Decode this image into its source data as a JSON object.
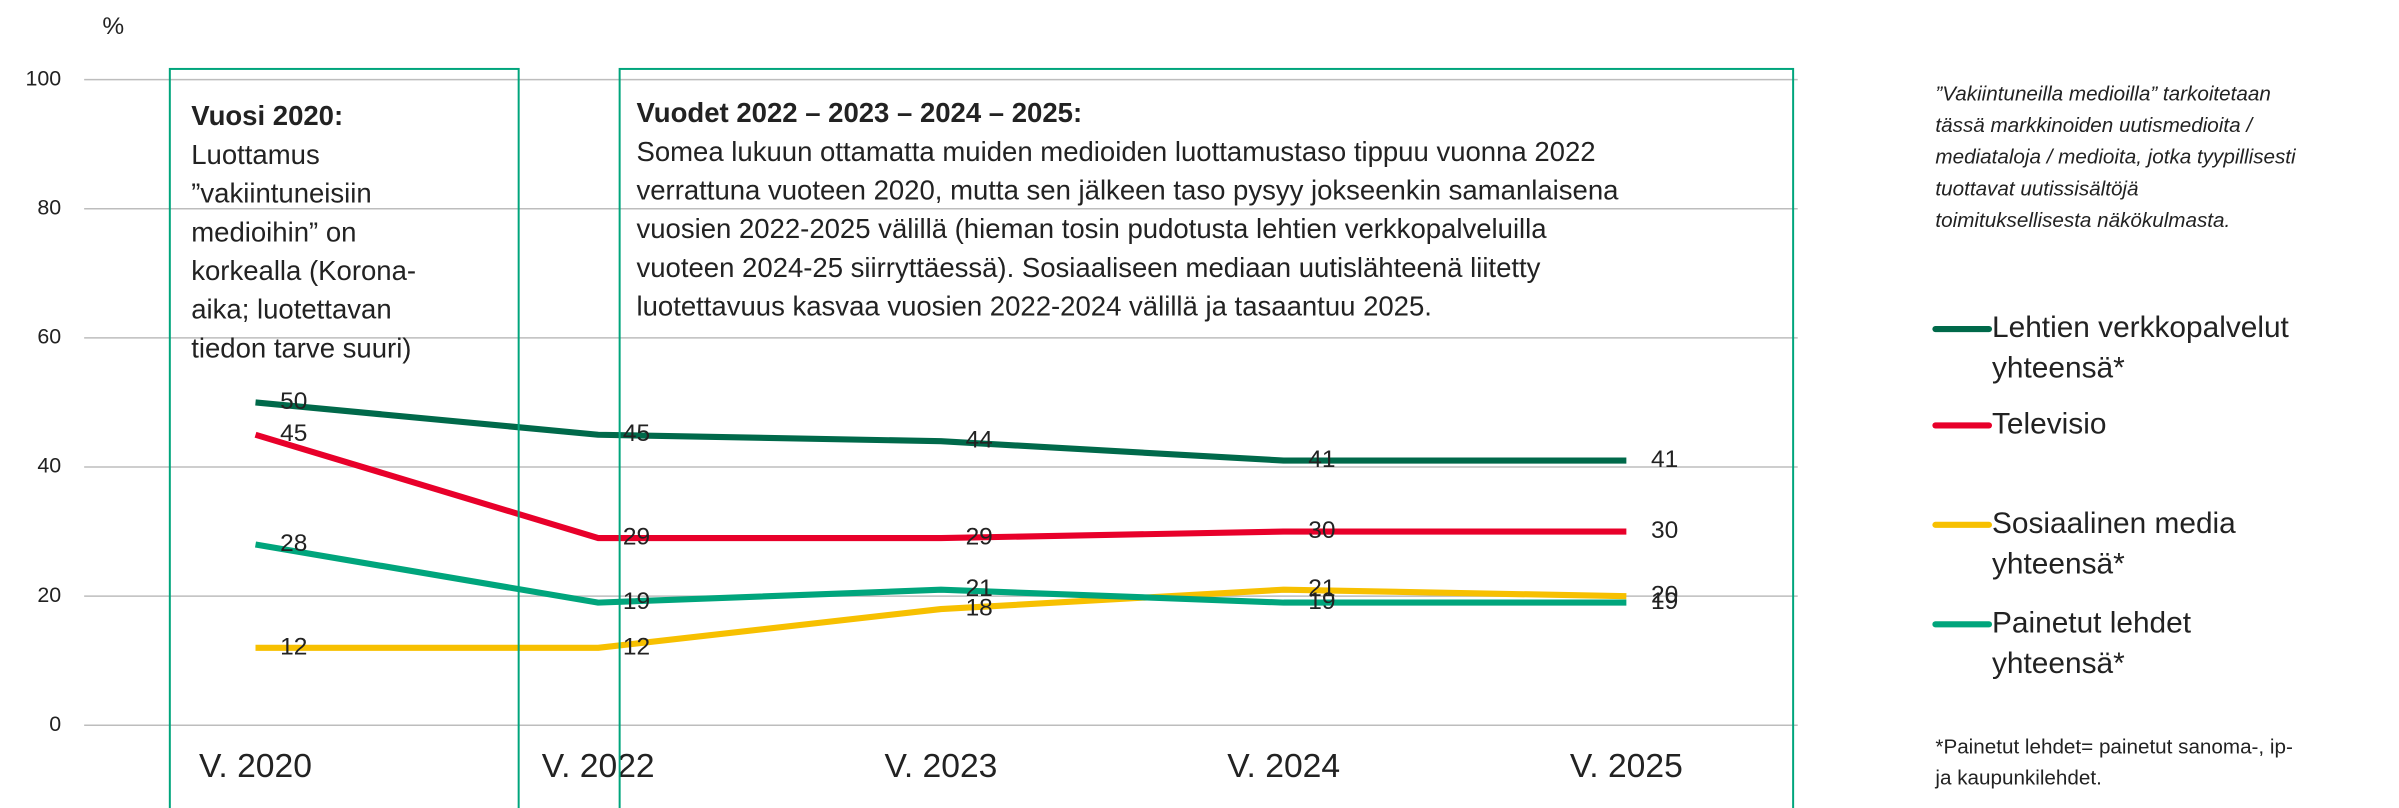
{
  "chart_data": {
    "type": "line",
    "y_unit": "%",
    "categories": [
      "V. 2020",
      "V. 2022",
      "V. 2023",
      "V. 2024",
      "V. 2025"
    ],
    "series": [
      {
        "name": "Lehtien verkkopalvelut yhteensä*",
        "color": "#00694a",
        "values": [
          50,
          45,
          44,
          41,
          41
        ]
      },
      {
        "name": "Televisio",
        "color": "#e8002a",
        "values": [
          45,
          29,
          29,
          30,
          30
        ]
      },
      {
        "name": "Sosiaalinen media yhteensä*",
        "color": "#f7c000",
        "values": [
          12,
          12,
          18,
          21,
          20
        ]
      },
      {
        "name": "Painetut lehdet yhteensä*",
        "color": "#00a57c",
        "values": [
          28,
          19,
          21,
          19,
          19
        ]
      }
    ],
    "ylim": [
      0,
      100
    ],
    "yticks": [
      0,
      20,
      40,
      60,
      80,
      100
    ],
    "grid": true,
    "annotations": [
      {
        "title": "Vuosi 2020:",
        "lines": [
          "Luottamus",
          "”vakiintuneisiin",
          "medioihin” on",
          "korkealla (Korona-",
          "aika; luotettavan",
          "tiedon tarve suuri)"
        ]
      },
      {
        "title": "Vuodet 2022 – 2023 – 2024 – 2025:",
        "lines": [
          "Somea lukuun ottamatta muiden medioiden luottamustaso tippuu vuonna 2022",
          "verrattuna vuoteen 2020, mutta sen jälkeen taso pysyy jokseenkin samanlaisena",
          "vuosien 2022-2025 välillä (hieman tosin pudotusta lehtien verkkopalveluilla",
          "vuoteen 2024-25 siirryttäessä). Sosiaaliseen mediaan uutislähteenä liitetty",
          "luotettavuus kasvaa vuosien 2022-2024 välillä ja tasaantuu 2025."
        ]
      }
    ],
    "note": [
      "”Vakiintuneilla medioilla” tarkoitetaan",
      "tässä markkinoiden uutismedioita /",
      "mediataloja / medioita, jotka tyypillisesti",
      "tuottavat uutissisältöjä",
      "toimituksellisesta näkökulmasta."
    ],
    "footnote": [
      "*Painetut lehdet= painetut sanoma-, ip-",
      "ja kaupunkilehdet."
    ]
  }
}
